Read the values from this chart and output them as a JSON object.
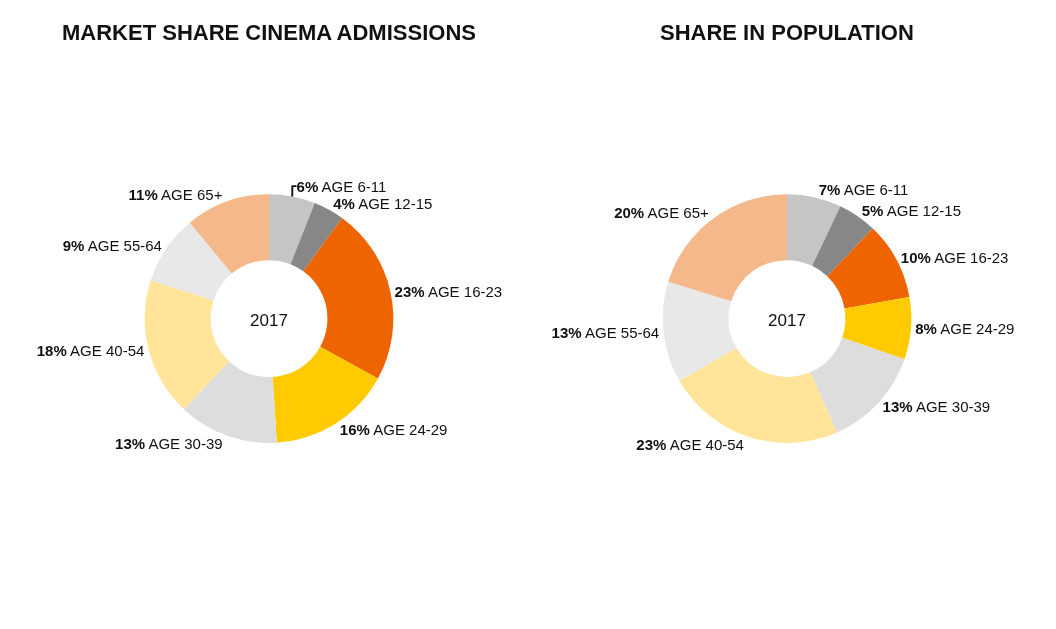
{
  "chart_data": [
    {
      "type": "donut",
      "title": "MARKET SHARE CINEMA ADMISSIONS",
      "annotations": [
        "2017"
      ],
      "categories": [
        "AGE 6-11",
        "AGE 12-15",
        "AGE 16-23",
        "AGE 24-29",
        "AGE 30-39",
        "AGE 40-54",
        "AGE 55-64",
        "AGE 65+"
      ],
      "values": [
        6,
        4,
        23,
        16,
        13,
        18,
        9,
        11
      ],
      "value_labels": [
        "6%",
        "4%",
        "23%",
        "16%",
        "13%",
        "18%",
        "9%",
        "11%"
      ],
      "colors": [
        "#c5c6c4",
        "#878787",
        "#ee6400",
        "#ffcb00",
        "#dcdddc",
        "#ffe49a",
        "#e8e8e8",
        "#f5b88a"
      ],
      "legend": false
    },
    {
      "type": "donut",
      "title": "SHARE IN POPULATION",
      "annotations": [
        "2017"
      ],
      "categories": [
        "AGE 6-11",
        "AGE 12-15",
        "AGE 16-23",
        "AGE 24-29",
        "AGE 30-39",
        "AGE 40-54",
        "AGE 55-64",
        "AGE 65+"
      ],
      "values": [
        7,
        5,
        10,
        8,
        13,
        23,
        13,
        20
      ],
      "value_labels": [
        "7%",
        "5%",
        "10%",
        "8%",
        "13%",
        "23%",
        "13%",
        "20%"
      ],
      "colors": [
        "#c5c6c4",
        "#878787",
        "#ee6400",
        "#ffcb00",
        "#dcdddc",
        "#ffe49a",
        "#e8e8e8",
        "#f5b88a"
      ],
      "legend": false
    }
  ]
}
